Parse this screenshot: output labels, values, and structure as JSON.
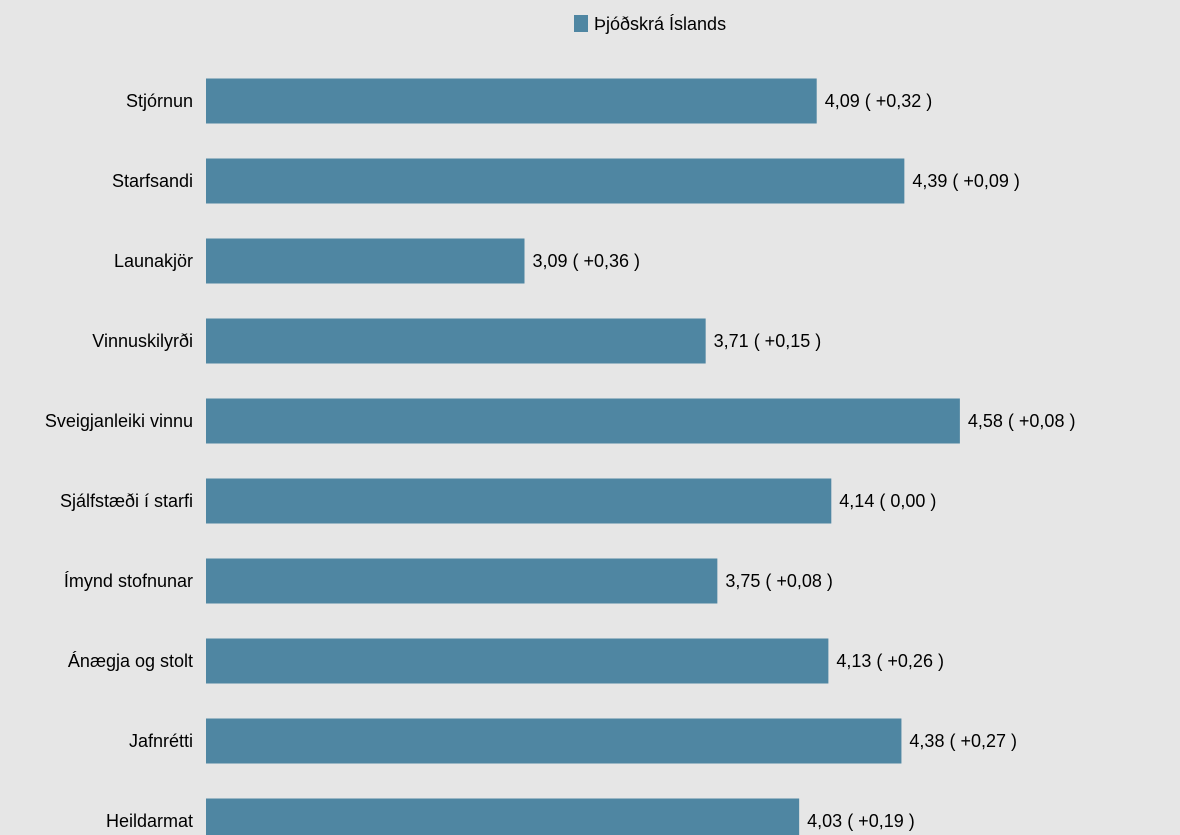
{
  "chart_data": {
    "type": "bar",
    "orientation": "horizontal",
    "categories": [
      "Stjórnun",
      "Starfsandi",
      "Launakjör",
      "Vinnuskilyrði",
      "Sveigjanleiki vinnu",
      "Sjálfstæði í starfi",
      "Ímynd stofnunar",
      "Ánægja og stolt",
      "Jafnrétti",
      "Heildarmat"
    ],
    "series": [
      {
        "name": "Þjóðskrá Íslands",
        "values": [
          4.09,
          4.39,
          3.09,
          3.71,
          4.58,
          4.14,
          3.75,
          4.13,
          4.38,
          4.03
        ],
        "color": "#4f86a2"
      }
    ],
    "data_labels": [
      "4,09 ( +0,32 )",
      "4,39 ( +0,09 )",
      "3,09 ( +0,36 )",
      "3,71 ( +0,15 )",
      "4,58 ( +0,08 )",
      "4,14 ( 0,00 )",
      "3,75 ( +0,08 )",
      "4,13 ( +0,26 )",
      "4,38 ( +0,27 )",
      "4,03 ( +0,19 )"
    ],
    "title": "",
    "xlabel": "",
    "ylabel": "",
    "xlim": [
      2.0,
      4.6
    ],
    "grid": false,
    "legend_position": "top-center",
    "background_color": "#e6e6e6"
  }
}
